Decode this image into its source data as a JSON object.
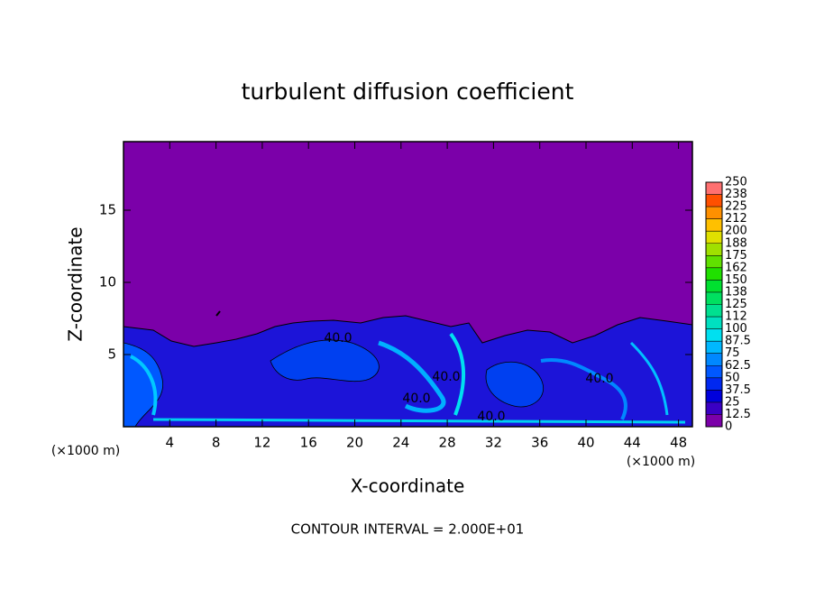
{
  "chart_data": {
    "type": "contour",
    "title": "turbulent diffusion coefficient",
    "xlabel": "X-coordinate",
    "ylabel": "Z-coordinate",
    "x_unit": "(×1000 m)",
    "footer": "CONTOUR INTERVAL = 2.000E+01",
    "xlim": [
      0,
      49.2
    ],
    "ylim": [
      0,
      19.75
    ],
    "xticks": [
      4,
      8,
      12,
      16,
      20,
      24,
      28,
      32,
      36,
      40,
      44,
      48
    ],
    "yticks": [
      5,
      10,
      15
    ],
    "annotations": [
      "40.0",
      "40.0",
      "40.0",
      "40.0",
      "40.0"
    ],
    "colorbar": {
      "levels": [
        0,
        12.5,
        25,
        37.5,
        50,
        62.5,
        75,
        87.5,
        100,
        {
          "value": 112.5,
          "label": "112"
        },
        125,
        {
          "value": 137.5,
          "label": "138"
        },
        150,
        {
          "value": 162.5,
          "label": "162"
        },
        175,
        {
          "value": 187.5,
          "label": "188"
        },
        200,
        {
          "value": 212.5,
          "label": "212"
        },
        225,
        {
          "value": 237.5,
          "label": "238"
        },
        250
      ],
      "colors": [
        "#7b00a9",
        "#3a00c4",
        "#0000dc",
        "#0028f0",
        "#0058ff",
        "#0088ff",
        "#00b8ff",
        "#00e0f0",
        "#00e0c0",
        "#00e090",
        "#00e060",
        "#00e030",
        "#20e000",
        "#60e000",
        "#a0e000",
        "#e0e000",
        "#ffc000",
        "#ff9000",
        "#ff5000",
        "#ff7070"
      ]
    }
  }
}
